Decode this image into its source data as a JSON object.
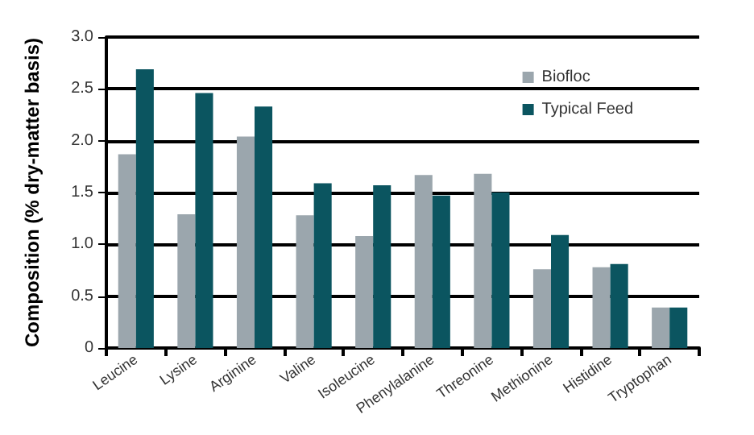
{
  "chart_data": {
    "type": "bar",
    "ylabel": "Composition (% dry-matter basis)",
    "categories": [
      "Leucine",
      "Lysine",
      "Arginine",
      "Valine",
      "Isoleucine",
      "Phenylalanine",
      "Threonine",
      "Methionine",
      "Histidine",
      "Tryptophan"
    ],
    "series": [
      {
        "name": "Biofloc",
        "color": "#9ba6ad",
        "values": [
          1.87,
          1.29,
          2.04,
          1.28,
          1.08,
          1.67,
          1.68,
          0.76,
          0.78,
          0.39
        ]
      },
      {
        "name": "Typical Feed",
        "color": "#0b5560",
        "values": [
          2.69,
          2.46,
          2.33,
          1.59,
          1.57,
          1.47,
          1.5,
          1.09,
          0.81,
          0.39
        ]
      }
    ],
    "ylim": [
      0,
      3
    ],
    "yticks": [
      0,
      0.5,
      {
        "value": 1,
        "label": "1.0"
      },
      1.5,
      {
        "value": 2,
        "label": "2.0"
      },
      2.5,
      {
        "value": 3,
        "label": "3.0"
      }
    ],
    "grid": "y",
    "legend": "top right"
  }
}
